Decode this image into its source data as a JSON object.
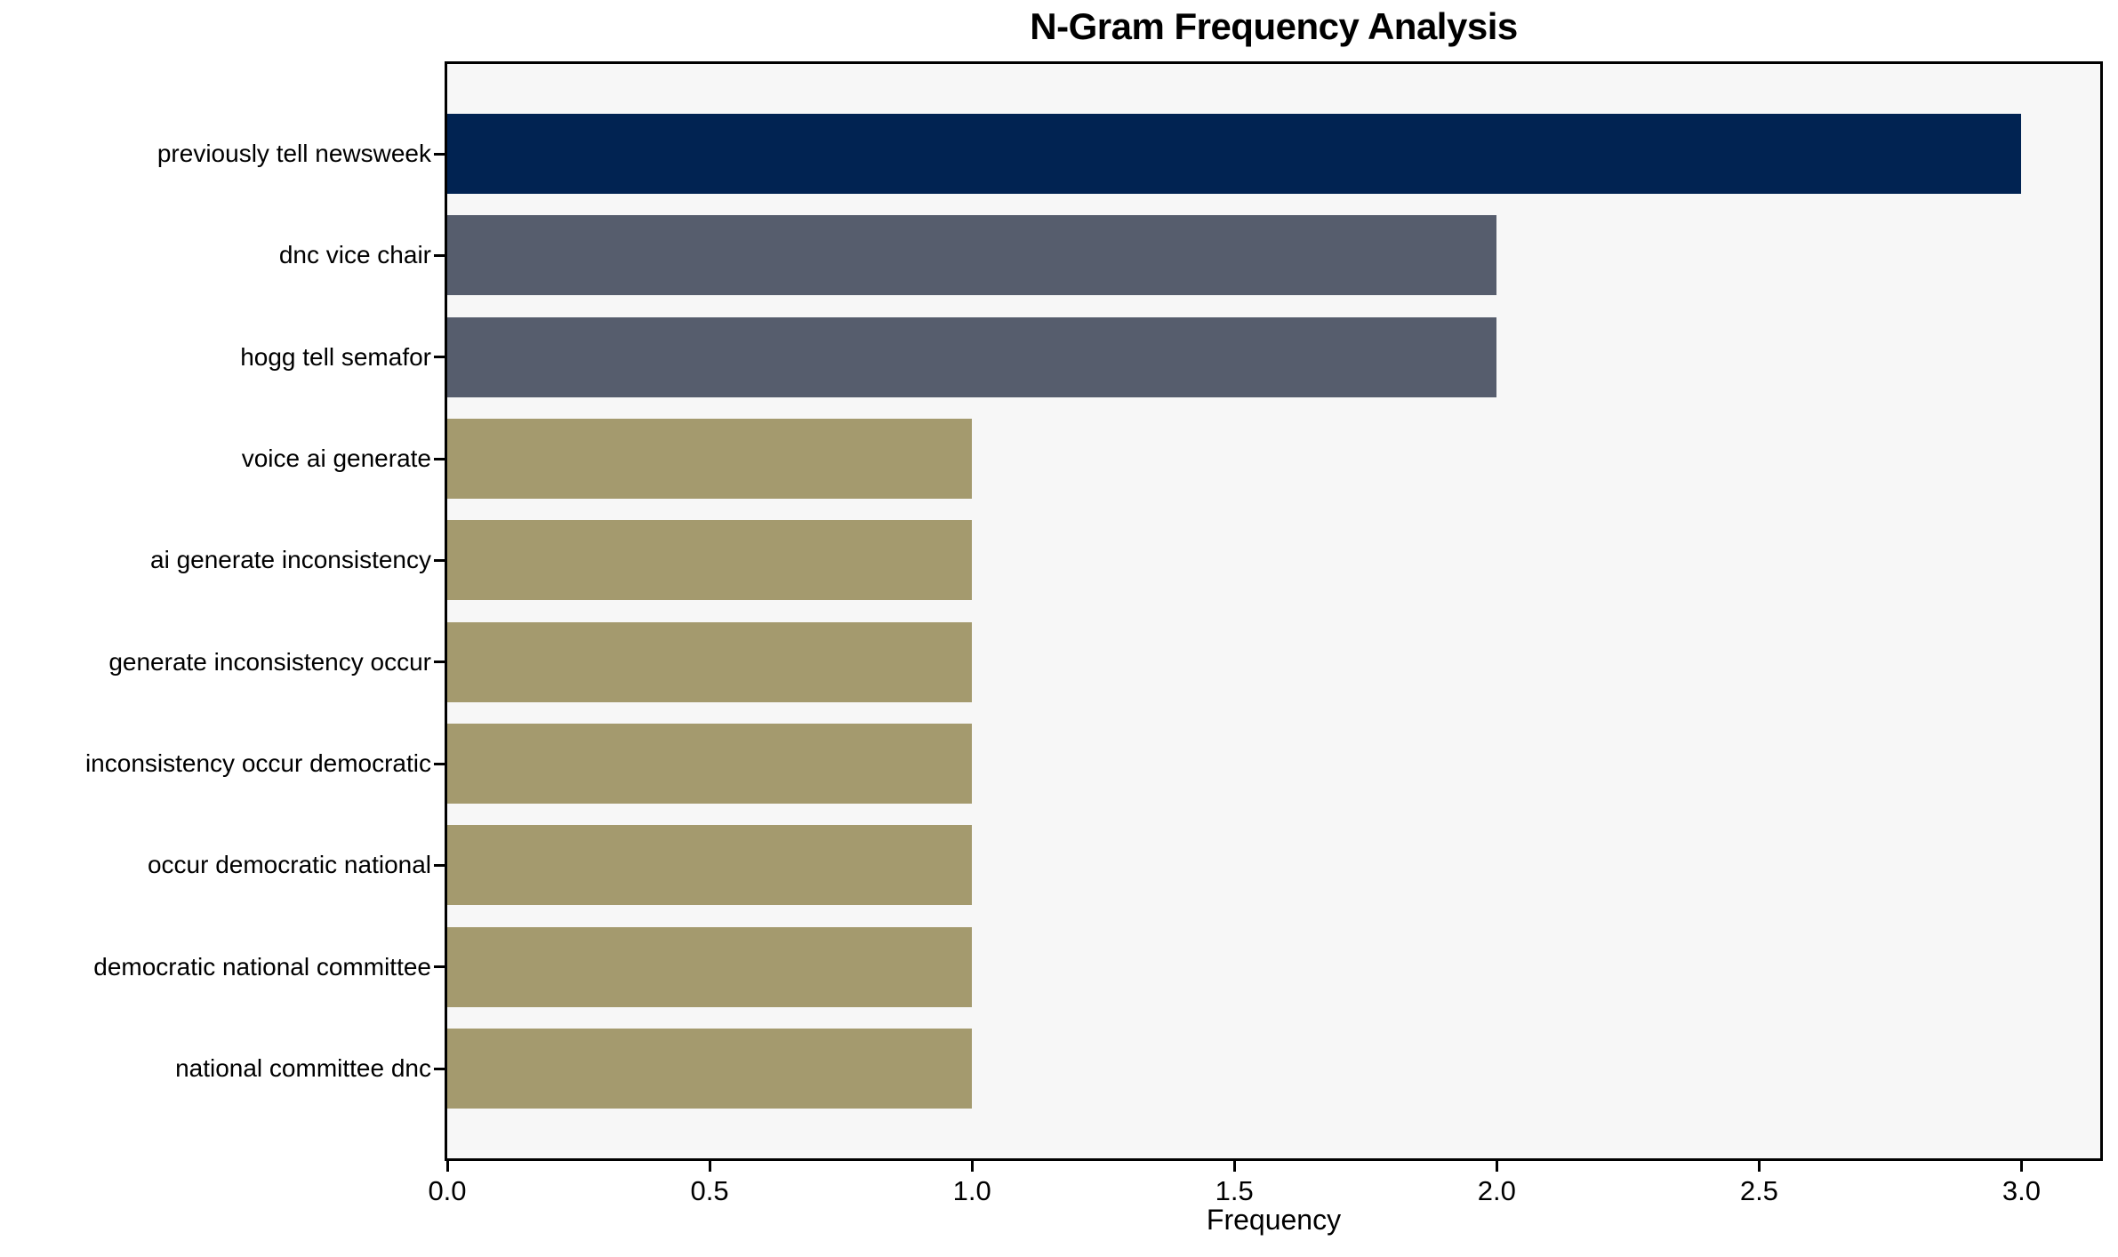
{
  "chart_data": {
    "type": "bar",
    "orientation": "horizontal",
    "title": "N-Gram Frequency Analysis",
    "xlabel": "Frequency",
    "ylabel": "",
    "categories": [
      "previously tell newsweek",
      "dnc vice chair",
      "hogg tell semafor",
      "voice ai generate",
      "ai generate inconsistency",
      "generate inconsistency occur",
      "inconsistency occur democratic",
      "occur democratic national",
      "democratic national committee",
      "national committee dnc"
    ],
    "values": [
      3,
      2,
      2,
      1,
      1,
      1,
      1,
      1,
      1,
      1
    ],
    "bar_colors": [
      "#012352",
      "#565d6d",
      "#565d6d",
      "#a49a6e",
      "#a49a6e",
      "#a49a6e",
      "#a49a6e",
      "#a49a6e",
      "#a49a6e",
      "#a49a6e"
    ],
    "xlim": [
      0,
      3.15
    ],
    "x_ticks": [
      "0.0",
      "0.5",
      "1.0",
      "1.5",
      "2.0",
      "2.5",
      "3.0"
    ],
    "grid": false,
    "legend": "none",
    "plot_background": "#f7f7f7",
    "figure_background": "#ffffff",
    "spine_color": "#000000"
  }
}
